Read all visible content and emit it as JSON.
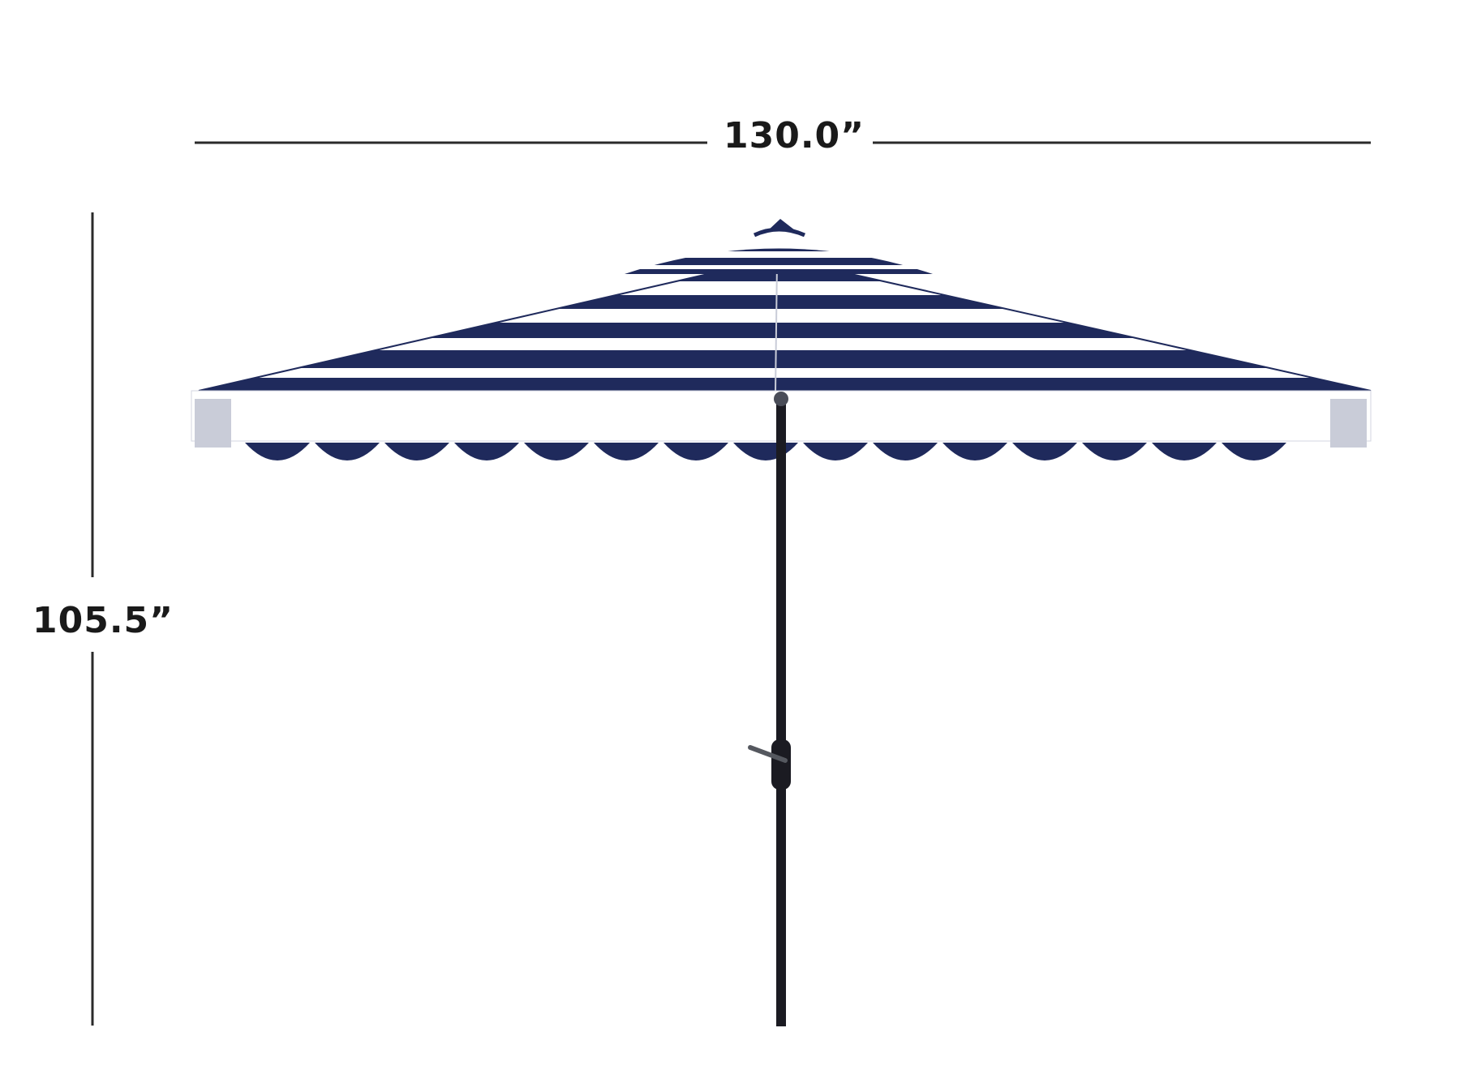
{
  "dimensions": {
    "width": "130.0”",
    "height": "105.5”"
  },
  "colors": {
    "canopy_stripe": "#1f2a5c",
    "canopy_white": "#ffffff",
    "pole": "#1b1b22",
    "dimension_line": "#2a2a2a"
  }
}
